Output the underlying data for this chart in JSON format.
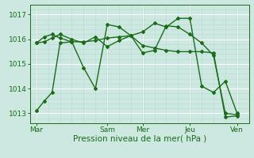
{
  "bg_color": "#cce8e0",
  "line_color": "#1a6b1a",
  "grid_major_color": "#ffffff",
  "grid_minor_color": "#b8d8d0",
  "xlabel": "Pression niveau de la mer( hPa )",
  "xlabel_color": "#1a6b1a",
  "xlabel_fontsize": 7.5,
  "tick_color": "#1a6b1a",
  "tick_fontsize": 6.5,
  "ylim": [
    1012.6,
    1017.4
  ],
  "yticks": [
    1013,
    1014,
    1015,
    1016,
    1017
  ],
  "xtick_labels": [
    "Mar",
    "Sam",
    "Mer",
    "Jeu",
    "Ven"
  ],
  "xtick_positions": [
    0,
    36,
    54,
    78,
    102
  ],
  "xlim": [
    -3,
    108
  ],
  "series": [
    {
      "x": [
        0,
        4,
        8,
        12,
        18,
        24,
        30,
        36,
        42,
        48,
        54,
        60,
        66,
        72,
        78,
        84,
        90,
        96,
        102
      ],
      "y": [
        1013.1,
        1013.5,
        1013.85,
        1015.85,
        1015.9,
        1015.9,
        1015.95,
        1016.05,
        1016.1,
        1016.15,
        1015.75,
        1015.65,
        1015.55,
        1015.5,
        1015.5,
        1015.5,
        1015.45,
        1012.85,
        1012.9
      ],
      "linestyle": "-",
      "marker": "D",
      "markersize": 2.0,
      "linewidth": 1.0
    },
    {
      "x": [
        0,
        4,
        8,
        12,
        18,
        24,
        30,
        36,
        42,
        48,
        54,
        60,
        66,
        72,
        78,
        84,
        90,
        96,
        102
      ],
      "y": [
        1015.85,
        1015.9,
        1016.05,
        1016.2,
        1016.0,
        1015.85,
        1016.1,
        1015.7,
        1015.95,
        1016.15,
        1015.45,
        1015.55,
        1016.55,
        1016.5,
        1016.2,
        1015.85,
        1015.35,
        1013.0,
        1012.95
      ],
      "linestyle": "-",
      "marker": "D",
      "markersize": 2.0,
      "linewidth": 1.0
    },
    {
      "x": [
        0,
        4,
        8,
        12,
        18,
        24,
        30,
        36,
        42,
        48,
        54,
        60,
        66,
        72,
        78,
        84,
        90,
        96,
        102
      ],
      "y": [
        1015.85,
        1016.1,
        1016.2,
        1016.05,
        1015.9,
        1014.85,
        1014.0,
        1016.6,
        1016.5,
        1016.15,
        1016.3,
        1016.65,
        1016.5,
        1016.85,
        1016.85,
        1014.1,
        1013.85,
        1014.3,
        1013.0
      ],
      "linestyle": "-",
      "marker": "D",
      "markersize": 2.0,
      "linewidth": 1.0
    }
  ]
}
